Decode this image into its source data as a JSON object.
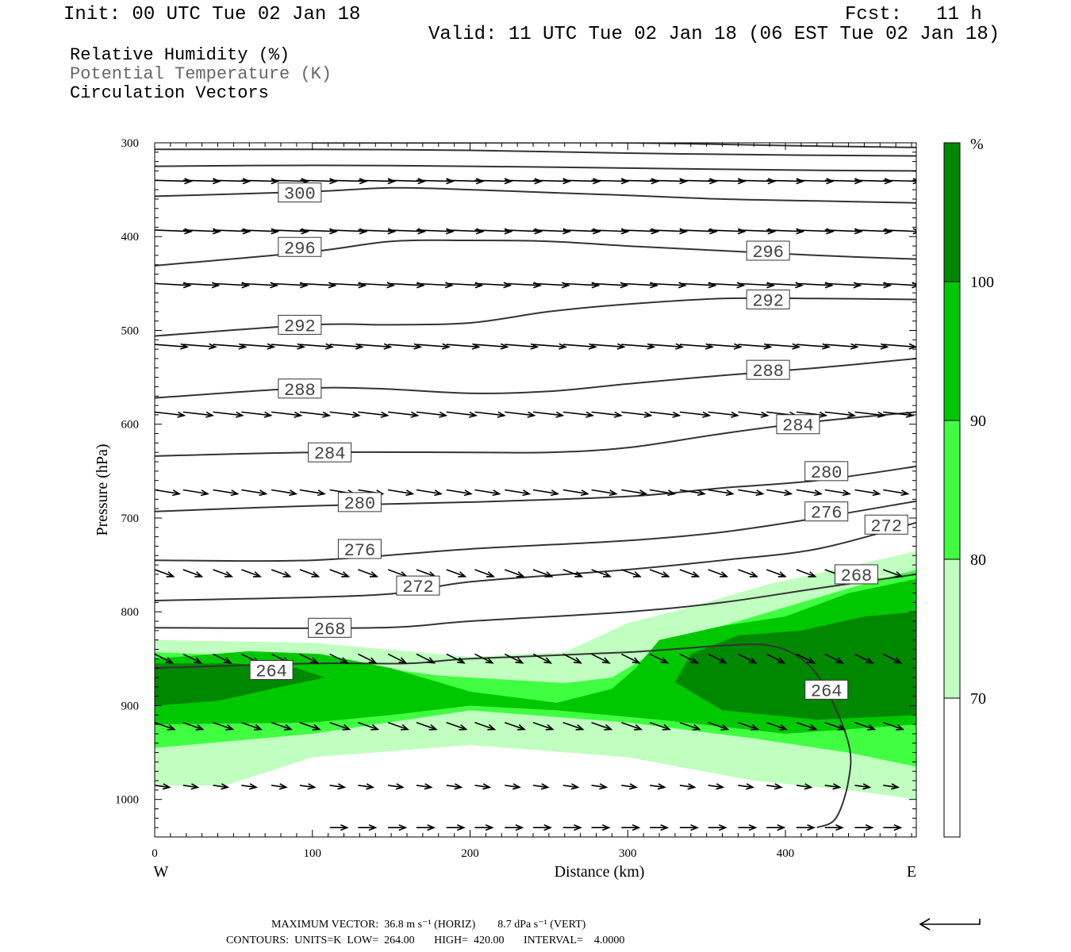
{
  "header": {
    "init": "Init: 00 UTC Tue 02 Jan 18",
    "fcst": "Fcst:   11 h",
    "valid": "Valid: 11 UTC Tue 02 Jan 18 (06 EST Tue 02 Jan 18)"
  },
  "legend": {
    "line1": "Relative Humidity (%)",
    "line2": "Potential Temperature (K)",
    "line3": "Circulation Vectors"
  },
  "footer": {
    "max_vector": "MAXIMUM VECTOR:  36.8 m s⁻¹ (HORIZ)        8.7 dPa s⁻¹ (VERT)",
    "contours": "CONTOURS:  UNITS=K  LOW=  264.00       HIGH=  420.00       INTERVAL=    4.0000"
  },
  "colors": {
    "rh_70": "#c0ffc0",
    "rh_80": "#40ff40",
    "rh_90": "#00c800",
    "rh_100": "#008800",
    "contour": "#333333"
  },
  "chart_data": {
    "type": "cross-section",
    "xlabel": "Distance (km)",
    "ylabel": "Pressure (hPa)",
    "xlim": [
      0,
      483
    ],
    "ylim": [
      1040,
      300
    ],
    "x_ticks": [
      "0",
      "100",
      "200",
      "300",
      "400"
    ],
    "y_ticks": [
      "300",
      "400",
      "500",
      "600",
      "700",
      "800",
      "900",
      "1000"
    ],
    "x_end_labels": {
      "west": "W",
      "east": "E"
    },
    "colorbar": {
      "unit": "%",
      "levels": [
        "100",
        "90",
        "80",
        "70"
      ],
      "colors": [
        "#008800",
        "#00c800",
        "#40ff40",
        "#c0ffc0",
        "#ffffff"
      ]
    },
    "rh_fill": {
      "rh70": [
        [
          [
            0,
            830
          ],
          [
            100,
            833
          ],
          [
            200,
            848
          ],
          [
            260,
            843
          ],
          [
            300,
            812
          ],
          [
            340,
            795
          ],
          [
            390,
            770
          ],
          [
            440,
            752
          ],
          [
            483,
            735
          ],
          [
            483,
            1000
          ],
          [
            440,
            990
          ],
          [
            380,
            980
          ],
          [
            300,
            955
          ],
          [
            200,
            942
          ],
          [
            100,
            955
          ],
          [
            45,
            985
          ],
          [
            0,
            985
          ]
        ]
      ],
      "rh80": [
        [
          [
            0,
            843
          ],
          [
            100,
            850
          ],
          [
            180,
            868
          ],
          [
            260,
            876
          ],
          [
            290,
            870
          ],
          [
            310,
            850
          ],
          [
            340,
            825
          ],
          [
            390,
            800
          ],
          [
            440,
            775
          ],
          [
            483,
            755
          ],
          [
            483,
            965
          ],
          [
            440,
            950
          ],
          [
            380,
            935
          ],
          [
            300,
            918
          ],
          [
            200,
            905
          ],
          [
            100,
            930
          ],
          [
            0,
            945
          ]
        ]
      ],
      "rh90": [
        [
          [
            0,
            850
          ],
          [
            60,
            842
          ],
          [
            105,
            845
          ],
          [
            150,
            860
          ],
          [
            200,
            885
          ],
          [
            255,
            897
          ],
          [
            290,
            882
          ],
          [
            305,
            860
          ],
          [
            320,
            830
          ],
          [
            360,
            815
          ],
          [
            400,
            805
          ],
          [
            440,
            780
          ],
          [
            483,
            765
          ],
          [
            483,
            920
          ],
          [
            400,
            930
          ],
          [
            320,
            915
          ],
          [
            255,
            905
          ],
          [
            200,
            900
          ],
          [
            150,
            910
          ],
          [
            100,
            918
          ],
          [
            0,
            920
          ]
        ],
        [
          [
            330,
            880
          ],
          [
            340,
            850
          ],
          [
            370,
            832
          ],
          [
            400,
            822
          ],
          [
            440,
            800
          ],
          [
            483,
            790
          ],
          [
            483,
            915
          ],
          [
            420,
            920
          ],
          [
            350,
            915
          ]
        ]
      ],
      "rh100": [
        [
          [
            0,
            855
          ],
          [
            50,
            855
          ],
          [
            90,
            860
          ],
          [
            108,
            870
          ],
          [
            80,
            880
          ],
          [
            40,
            895
          ],
          [
            0,
            900
          ]
        ],
        [
          [
            330,
            875
          ],
          [
            340,
            845
          ],
          [
            370,
            825
          ],
          [
            410,
            820
          ],
          [
            450,
            805
          ],
          [
            483,
            800
          ],
          [
            483,
            910
          ],
          [
            420,
            915
          ],
          [
            360,
            905
          ]
        ]
      ]
    },
    "theta_contours": [
      {
        "value": "264",
        "points": [
          [
            0,
            860
          ],
          [
            100,
            855
          ],
          [
            160,
            855
          ],
          [
            200,
            850
          ],
          [
            300,
            843
          ],
          [
            360,
            836
          ],
          [
            390,
            836
          ],
          [
            410,
            850
          ],
          [
            425,
            880
          ],
          [
            440,
            940
          ],
          [
            440,
            980
          ],
          [
            432,
            1020
          ],
          [
            420,
            1030
          ]
        ],
        "labels": [
          [
            74,
            862
          ],
          [
            426,
            883
          ]
        ]
      },
      {
        "value": "268",
        "points": [
          [
            0,
            817
          ],
          [
            140,
            817
          ],
          [
            200,
            810
          ],
          [
            300,
            800
          ],
          [
            360,
            790
          ],
          [
            420,
            775
          ],
          [
            483,
            760
          ]
        ],
        "labels": [
          [
            111,
            817
          ],
          [
            445,
            760
          ]
        ]
      },
      {
        "value": "272",
        "points": [
          [
            0,
            788
          ],
          [
            140,
            782
          ],
          [
            200,
            768
          ],
          [
            300,
            755
          ],
          [
            360,
            745
          ],
          [
            420,
            733
          ],
          [
            483,
            705
          ]
        ],
        "labels": [
          [
            167,
            772
          ],
          [
            464,
            707
          ]
        ]
      },
      {
        "value": "276",
        "points": [
          [
            0,
            745
          ],
          [
            100,
            745
          ],
          [
            200,
            733
          ],
          [
            300,
            724
          ],
          [
            360,
            715
          ],
          [
            420,
            700
          ],
          [
            483,
            682
          ]
        ],
        "labels": [
          [
            130,
            733
          ],
          [
            426,
            693
          ]
        ]
      },
      {
        "value": "280",
        "points": [
          [
            0,
            693
          ],
          [
            100,
            687
          ],
          [
            200,
            683
          ],
          [
            300,
            677
          ],
          [
            360,
            668
          ],
          [
            420,
            660
          ],
          [
            483,
            645
          ]
        ],
        "labels": [
          [
            130,
            683
          ],
          [
            426,
            650
          ]
        ]
      },
      {
        "value": "284",
        "points": [
          [
            0,
            634
          ],
          [
            100,
            630
          ],
          [
            200,
            630
          ],
          [
            250,
            630
          ],
          [
            300,
            625
          ],
          [
            360,
            610
          ],
          [
            420,
            597
          ],
          [
            483,
            587
          ]
        ],
        "labels": [
          [
            111,
            630
          ],
          [
            408,
            600
          ]
        ]
      },
      {
        "value": "288",
        "points": [
          [
            0,
            572
          ],
          [
            90,
            562
          ],
          [
            140,
            562
          ],
          [
            200,
            567
          ],
          [
            250,
            565
          ],
          [
            300,
            557
          ],
          [
            360,
            548
          ],
          [
            420,
            540
          ],
          [
            483,
            530
          ]
        ],
        "labels": [
          [
            92,
            562
          ],
          [
            389,
            542
          ]
        ]
      },
      {
        "value": "292",
        "points": [
          [
            0,
            506
          ],
          [
            100,
            494
          ],
          [
            150,
            494
          ],
          [
            200,
            492
          ],
          [
            250,
            480
          ],
          [
            300,
            472
          ],
          [
            360,
            466
          ],
          [
            420,
            466
          ],
          [
            483,
            467
          ]
        ],
        "labels": [
          [
            92,
            494
          ],
          [
            389,
            467
          ]
        ]
      },
      {
        "value": "296",
        "points": [
          [
            0,
            431
          ],
          [
            100,
            416
          ],
          [
            150,
            405
          ],
          [
            200,
            404
          ],
          [
            250,
            405
          ],
          [
            300,
            410
          ],
          [
            360,
            415
          ],
          [
            420,
            420
          ],
          [
            483,
            424
          ]
        ],
        "labels": [
          [
            92,
            411
          ],
          [
            389,
            415
          ]
        ]
      },
      {
        "value": "300",
        "points": [
          [
            0,
            357
          ],
          [
            100,
            352
          ],
          [
            150,
            348
          ],
          [
            200,
            350
          ],
          [
            250,
            353
          ],
          [
            300,
            356
          ],
          [
            360,
            360
          ],
          [
            420,
            362
          ],
          [
            483,
            364
          ]
        ],
        "labels": [
          [
            92,
            353
          ]
        ]
      },
      {
        "value": "",
        "points": [
          [
            0,
            325
          ],
          [
            100,
            324
          ],
          [
            200,
            325
          ],
          [
            300,
            327
          ],
          [
            400,
            329
          ],
          [
            483,
            330
          ]
        ],
        "labels": []
      },
      {
        "value": "",
        "points": [
          [
            0,
            307
          ],
          [
            100,
            307
          ],
          [
            200,
            308
          ],
          [
            300,
            311
          ],
          [
            400,
            313
          ],
          [
            483,
            314
          ]
        ],
        "labels": []
      },
      {
        "value": "",
        "points": [
          [
            100,
            300
          ],
          [
            200,
            300
          ],
          [
            300,
            300
          ],
          [
            400,
            303
          ],
          [
            483,
            305
          ]
        ],
        "labels": []
      }
    ],
    "vectors": {
      "x": [
        0,
        18,
        37,
        55,
        74,
        92,
        111,
        129,
        148,
        166,
        185,
        203,
        222,
        240,
        259,
        277,
        296,
        314,
        333,
        351,
        370,
        388,
        407,
        425,
        444,
        462
      ],
      "levels": [
        {
          "p": 340,
          "u": 0.74,
          "w": 0.02
        },
        {
          "p": 393,
          "u": 0.74,
          "w": 0.03
        },
        {
          "p": 450,
          "u": 0.72,
          "w": 0.04
        },
        {
          "p": 515,
          "u": 0.66,
          "w": 0.05
        },
        {
          "p": 587,
          "u": 0.6,
          "w": 0.07
        },
        {
          "p": 670,
          "u": 0.5,
          "w": 0.08
        },
        {
          "p": 755,
          "u": 0.38,
          "w": 0.14
        },
        {
          "p": 845,
          "u": 0.36,
          "w": 0.18
        },
        {
          "p": 918,
          "u": 0.4,
          "w": 0.14
        },
        {
          "p": 985,
          "u": 0.3,
          "w": 0.04
        }
      ],
      "ground_p": 1030
    },
    "reference_vector": {
      "label": ""
    }
  }
}
